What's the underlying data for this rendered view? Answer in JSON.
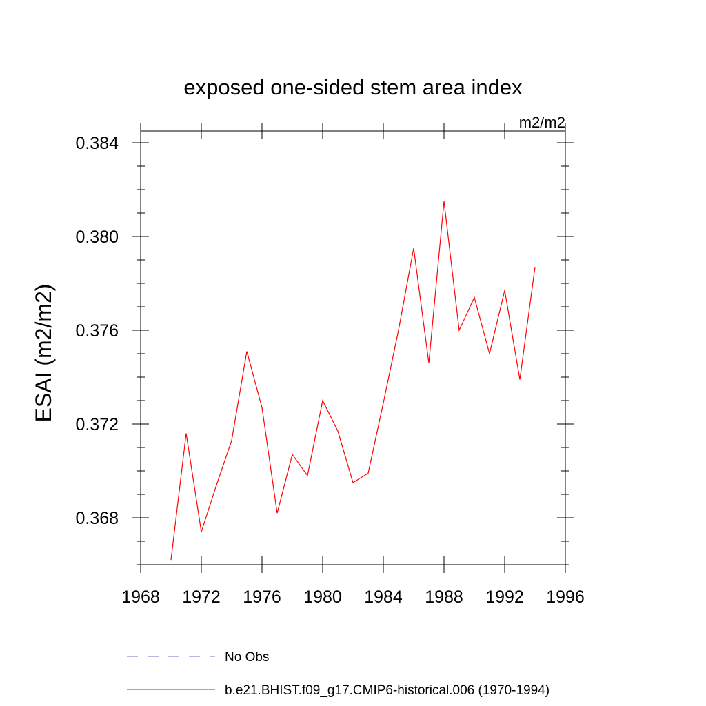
{
  "chart_data": {
    "type": "line",
    "title": "exposed one-sided stem area index",
    "units_label": "m2/m2",
    "ylabel": "ESAI  (m2/m2)",
    "xlabel": "",
    "xlim": [
      1968,
      1996
    ],
    "ylim": [
      0.366,
      0.3845
    ],
    "x_ticks": [
      1968,
      1972,
      1976,
      1980,
      1984,
      1988,
      1992,
      1996
    ],
    "x_tick_labels": [
      "1968",
      "1972",
      "1976",
      "1980",
      "1984",
      "1988",
      "1992",
      "1996"
    ],
    "y_ticks": [
      0.368,
      0.372,
      0.376,
      0.38,
      0.384
    ],
    "y_tick_labels": [
      "0.368",
      "0.372",
      "0.376",
      "0.380",
      "0.384"
    ],
    "grid": false,
    "legend_placement": "bottom",
    "series": [
      {
        "name": "b.e21.BHIST.f09_g17.CMIP6-historical.006 (1970-1994)",
        "color": "#ff0000",
        "dash": "solid",
        "x": [
          1970,
          1971,
          1972,
          1973,
          1974,
          1975,
          1976,
          1977,
          1978,
          1979,
          1980,
          1981,
          1982,
          1983,
          1984,
          1985,
          1986,
          1987,
          1988,
          1989,
          1990,
          1991,
          1992,
          1993,
          1994
        ],
        "y": [
          0.3662,
          0.3716,
          0.3674,
          0.3694,
          0.3713,
          0.3751,
          0.3727,
          0.3682,
          0.3707,
          0.3698,
          0.373,
          0.3717,
          0.3695,
          0.3699,
          0.3729,
          0.376,
          0.3795,
          0.3746,
          0.3815,
          0.376,
          0.3774,
          0.375,
          0.3777,
          0.3739,
          0.3787
        ]
      }
    ],
    "legend": [
      {
        "label": "No Obs",
        "color": "#7b6fbf",
        "dash": "dashed"
      },
      {
        "label": "b.e21.BHIST.f09_g17.CMIP6-historical.006 (1970-1994)",
        "color": "#ff0000",
        "dash": "solid"
      }
    ]
  }
}
